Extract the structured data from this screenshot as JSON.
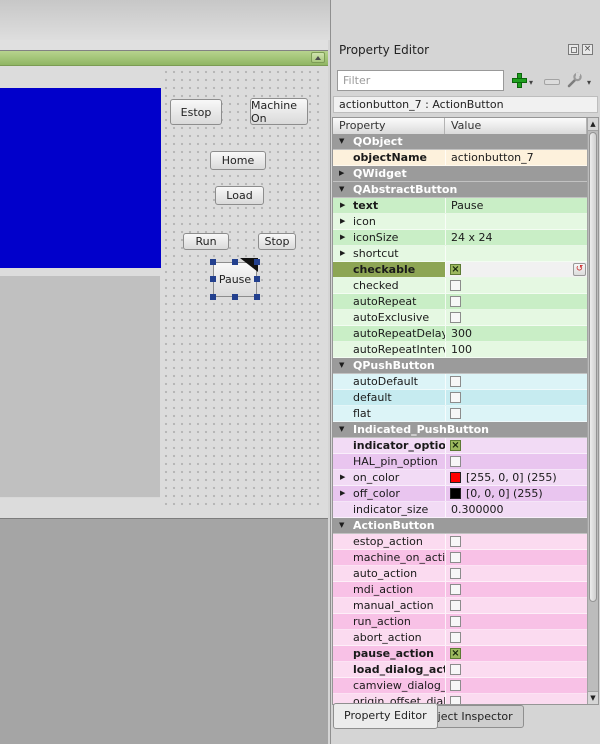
{
  "form": {
    "buttons": [
      "Estop",
      "Machine On",
      "Home",
      "Load",
      "Run",
      "Stop"
    ],
    "selected_button": "Pause"
  },
  "property_editor": {
    "title": "Property Editor",
    "filter_placeholder": "Filter",
    "object_label": "actionbutton_7 : ActionButton",
    "columns": [
      "Property",
      "Value"
    ],
    "colors": {
      "on_color": "#ff0000",
      "off_color": "#000000"
    },
    "rows": [
      {
        "t": "group",
        "label": "QObject"
      },
      {
        "t": "prop",
        "label": "objectName",
        "value": "actionbutton_7",
        "bold": true,
        "theme": "peach",
        "shade": "l"
      },
      {
        "t": "group-collapsed",
        "label": "QWidget"
      },
      {
        "t": "group",
        "label": "QAbstractButton"
      },
      {
        "t": "prop",
        "label": "text",
        "value": "Pause",
        "bold": true,
        "arrow": true,
        "theme": "green",
        "shade": "d"
      },
      {
        "t": "prop",
        "label": "icon",
        "value": "",
        "arrow": true,
        "theme": "green",
        "shade": "l"
      },
      {
        "t": "prop",
        "label": "iconSize",
        "value": "24 x 24",
        "arrow": true,
        "theme": "green",
        "shade": "d"
      },
      {
        "t": "prop",
        "label": "shortcut",
        "value": "",
        "arrow": true,
        "theme": "green",
        "shade": "l"
      },
      {
        "t": "prop",
        "label": "checkable",
        "bold": true,
        "selected": true,
        "check": true,
        "reset": true,
        "theme": "green",
        "shade": "d"
      },
      {
        "t": "prop",
        "label": "checked",
        "check": false,
        "theme": "green",
        "shade": "l"
      },
      {
        "t": "prop",
        "label": "autoRepeat",
        "check": false,
        "theme": "green",
        "shade": "d"
      },
      {
        "t": "prop",
        "label": "autoExclusive",
        "check": false,
        "theme": "green",
        "shade": "l"
      },
      {
        "t": "prop",
        "label": "autoRepeatDelay",
        "value": "300",
        "theme": "green",
        "shade": "d"
      },
      {
        "t": "prop",
        "label": "autoRepeatInterval",
        "value": "100",
        "theme": "green",
        "shade": "l"
      },
      {
        "t": "group",
        "label": "QPushButton"
      },
      {
        "t": "prop",
        "label": "autoDefault",
        "check": false,
        "theme": "cyan",
        "shade": "l"
      },
      {
        "t": "prop",
        "label": "default",
        "check": false,
        "theme": "cyan",
        "shade": "d"
      },
      {
        "t": "prop",
        "label": "flat",
        "check": false,
        "theme": "cyan",
        "shade": "l"
      },
      {
        "t": "group",
        "label": "Indicated_PushButton"
      },
      {
        "t": "prop",
        "label": "indicator_option",
        "bold": true,
        "check": true,
        "theme": "violet",
        "shade": "l"
      },
      {
        "t": "prop",
        "label": "HAL_pin_option",
        "check": false,
        "theme": "violet",
        "shade": "d"
      },
      {
        "t": "prop",
        "label": "on_color",
        "value": "[255, 0, 0] (255)",
        "swatch": "#ff0000",
        "arrow": true,
        "theme": "violet",
        "shade": "l"
      },
      {
        "t": "prop",
        "label": "off_color",
        "value": "[0, 0, 0] (255)",
        "swatch": "#000000",
        "arrow": true,
        "theme": "violet",
        "shade": "d"
      },
      {
        "t": "prop",
        "label": "indicator_size",
        "value": "0.300000",
        "theme": "violet",
        "shade": "l"
      },
      {
        "t": "group",
        "label": "ActionButton"
      },
      {
        "t": "prop",
        "label": "estop_action",
        "check": false,
        "theme": "pink",
        "shade": "l"
      },
      {
        "t": "prop",
        "label": "machine_on_action",
        "check": false,
        "theme": "pink",
        "shade": "d"
      },
      {
        "t": "prop",
        "label": "auto_action",
        "check": false,
        "theme": "pink",
        "shade": "l"
      },
      {
        "t": "prop",
        "label": "mdi_action",
        "check": false,
        "theme": "pink",
        "shade": "d"
      },
      {
        "t": "prop",
        "label": "manual_action",
        "check": false,
        "theme": "pink",
        "shade": "l"
      },
      {
        "t": "prop",
        "label": "run_action",
        "check": false,
        "theme": "pink",
        "shade": "d"
      },
      {
        "t": "prop",
        "label": "abort_action",
        "check": false,
        "theme": "pink",
        "shade": "l"
      },
      {
        "t": "prop",
        "label": "pause_action",
        "bold": true,
        "check": true,
        "theme": "pink",
        "shade": "d"
      },
      {
        "t": "prop",
        "label": "load_dialog_action",
        "bold": true,
        "check": false,
        "theme": "pink",
        "shade": "l"
      },
      {
        "t": "prop",
        "label": "camview_dialog_acti...",
        "check": false,
        "theme": "pink",
        "shade": "d"
      },
      {
        "t": "prop",
        "label": "origin_offset_dialog",
        "check": false,
        "theme": "pink",
        "shade": "l"
      }
    ],
    "tabs": [
      "Property Editor",
      "Object Inspector"
    ]
  }
}
